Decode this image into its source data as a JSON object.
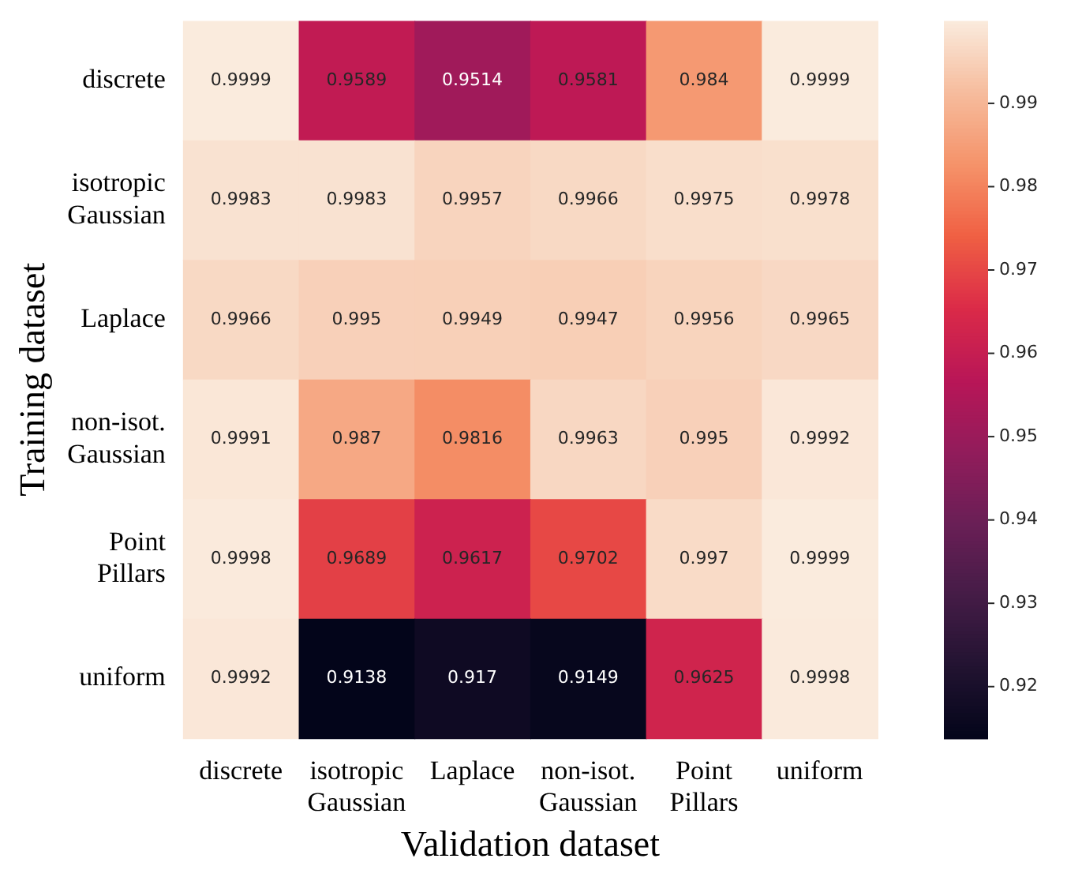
{
  "chart_data": {
    "type": "heatmap",
    "xlabel": "Validation dataset",
    "ylabel": "Training dataset",
    "categories": [
      "discrete",
      "isotropic Gaussian",
      "Laplace",
      "non-isot. Gaussian",
      "Point Pillars",
      "uniform"
    ],
    "y_categories": [
      "discrete",
      "isotropic Gaussian",
      "Laplace",
      "non-isot. Gaussian",
      "Point Pillars",
      "uniform"
    ],
    "cells": [
      [
        0.9999,
        0.9589,
        0.9514,
        0.9581,
        0.984,
        0.9999
      ],
      [
        0.9983,
        0.9983,
        0.9957,
        0.9966,
        0.9975,
        0.9978
      ],
      [
        0.9966,
        0.995,
        0.9949,
        0.9947,
        0.9956,
        0.9965
      ],
      [
        0.9991,
        0.987,
        0.9816,
        0.9963,
        0.995,
        0.9992
      ],
      [
        0.9998,
        0.9689,
        0.9617,
        0.9702,
        0.997,
        0.9999
      ],
      [
        0.9992,
        0.9138,
        0.917,
        0.9149,
        0.9625,
        0.9998
      ]
    ],
    "clim": [
      0.9138,
      0.9999
    ],
    "cticks": [
      0.92,
      0.93,
      0.94,
      0.95,
      0.96,
      0.97,
      0.98,
      0.99
    ],
    "data_labels": true
  }
}
